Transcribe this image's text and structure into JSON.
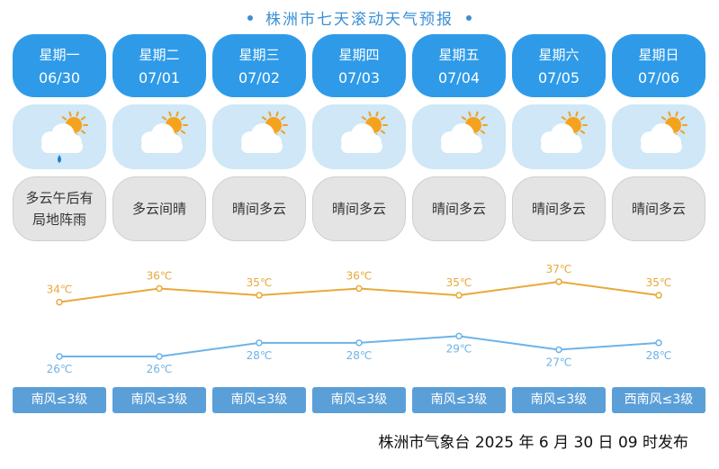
{
  "header": {
    "title": "株洲市七天滚动天气预报"
  },
  "days": [
    {
      "weekday": "星期一",
      "date": "06/30",
      "condition": "多云午后有局地阵雨",
      "icon": "cloud-sun-rain-icon",
      "wind": "南风≤3级"
    },
    {
      "weekday": "星期二",
      "date": "07/01",
      "condition": "多云间晴",
      "icon": "cloud-sun-icon",
      "wind": "南风≤3级"
    },
    {
      "weekday": "星期三",
      "date": "07/02",
      "condition": "晴间多云",
      "icon": "cloud-sun-icon",
      "wind": "南风≤3级"
    },
    {
      "weekday": "星期四",
      "date": "07/03",
      "condition": "晴间多云",
      "icon": "cloud-sun-icon",
      "wind": "南风≤3级"
    },
    {
      "weekday": "星期五",
      "date": "07/04",
      "condition": "晴间多云",
      "icon": "cloud-sun-icon",
      "wind": "南风≤3级"
    },
    {
      "weekday": "星期六",
      "date": "07/05",
      "condition": "晴间多云",
      "icon": "cloud-sun-icon",
      "wind": "南风≤3级"
    },
    {
      "weekday": "星期日",
      "date": "07/06",
      "condition": "晴间多云",
      "icon": "cloud-sun-icon",
      "wind": "西南风≤3级"
    }
  ],
  "chart_data": {
    "type": "line",
    "categories": [
      "06/30",
      "07/01",
      "07/02",
      "07/03",
      "07/04",
      "07/05",
      "07/06"
    ],
    "series": [
      {
        "values": [
          34,
          36,
          35,
          36,
          35,
          37,
          35
        ],
        "color": "#e8a93a"
      },
      {
        "values": [
          26,
          26,
          28,
          28,
          29,
          27,
          28
        ],
        "color": "#6db3e8"
      }
    ],
    "unit": "℃"
  },
  "footer": {
    "issuer": "株洲市气象台 2025 年 6 月 30 日 09 时发布"
  },
  "colors": {
    "accent": "#2f9be8",
    "wind_bg": "#5b9fd8",
    "icon_bg": "#cfe7f6",
    "condition_bg": "#e4e4e4"
  }
}
